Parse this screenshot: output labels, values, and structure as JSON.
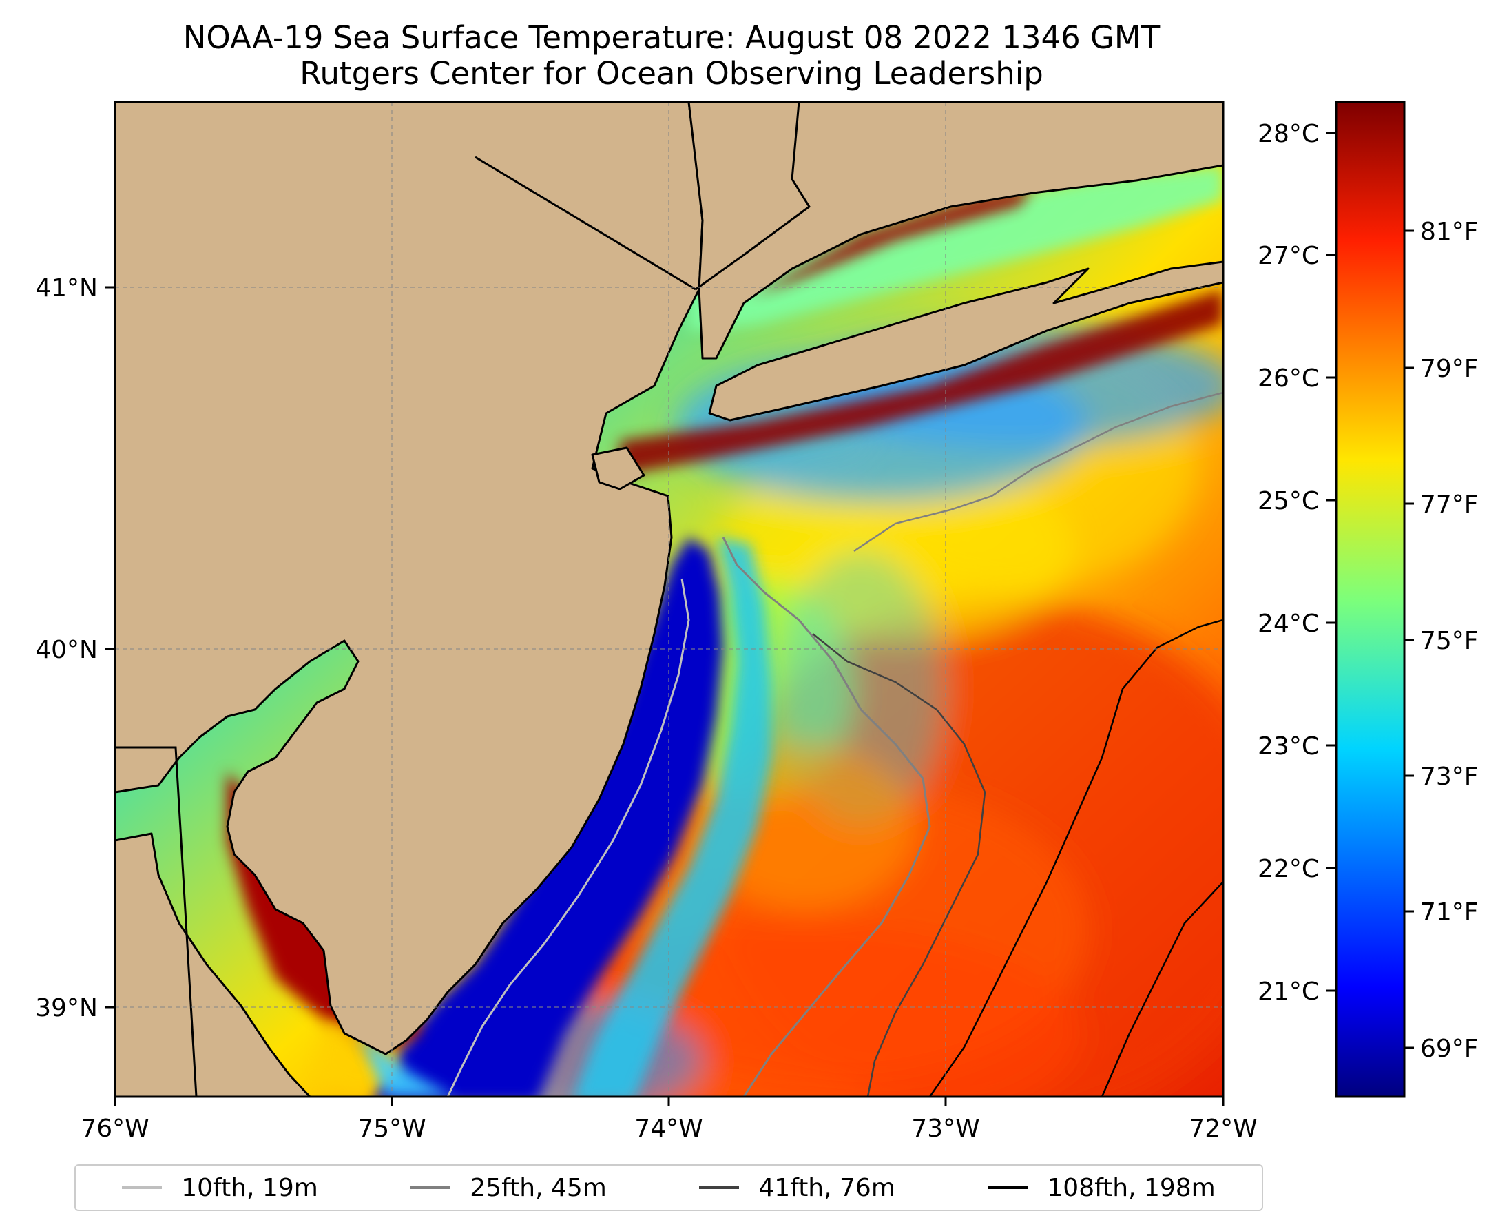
{
  "title": "NOAA-19 Sea Surface Temperature: August 08 2022 1346 GMT",
  "subtitle": "Rutgers Center for Ocean Observing Leadership",
  "map": {
    "lon_range": [
      -76,
      -72
    ],
    "lat_range": [
      38.75,
      41.5
    ],
    "lon_ticks": [
      "76°W",
      "75°W",
      "74°W",
      "73°W",
      "72°W"
    ],
    "lat_ticks": [
      "41°N",
      "40°N",
      "39°N"
    ],
    "gridlines": true,
    "land_color": "#d2b48c"
  },
  "colorbar": {
    "colormap": "jet",
    "celsius_ticks": [
      "28°C",
      "27°C",
      "26°C",
      "25°C",
      "24°C",
      "23°C",
      "22°C",
      "21°C"
    ],
    "fahrenheit_ticks": [
      "81°F",
      "79°F",
      "77°F",
      "75°F",
      "73°F",
      "71°F",
      "69°F"
    ]
  },
  "legend": [
    {
      "label": "10fth, 19m",
      "color": "#bfbfbf"
    },
    {
      "label": "25fth, 45m",
      "color": "#808080"
    },
    {
      "label": "41fth, 76m",
      "color": "#404040"
    },
    {
      "label": "108fth, 198m",
      "color": "#000000"
    }
  ]
}
